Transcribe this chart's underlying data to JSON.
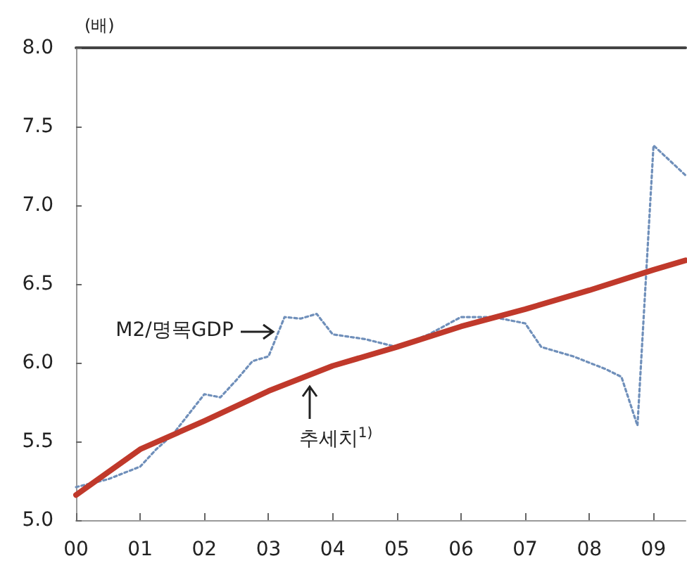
{
  "chart_data": {
    "type": "line",
    "ylabel": "(배)",
    "xlim": [
      2000,
      2009.5
    ],
    "xticks": [
      {
        "value": 2000,
        "label": "00"
      },
      {
        "value": 2001,
        "label": "01"
      },
      {
        "value": 2002,
        "label": "02"
      },
      {
        "value": 2003,
        "label": "03"
      },
      {
        "value": 2004,
        "label": "04"
      },
      {
        "value": 2005,
        "label": "05"
      },
      {
        "value": 2006,
        "label": "06"
      },
      {
        "value": 2007,
        "label": "07"
      },
      {
        "value": 2008,
        "label": "08"
      },
      {
        "value": 2009,
        "label": "09"
      }
    ],
    "ylim": [
      5,
      8
    ],
    "yticks": [
      {
        "value": 5,
        "label": "5.0"
      },
      {
        "value": 5.5,
        "label": "5.5"
      },
      {
        "value": 6,
        "label": "6.0"
      },
      {
        "value": 6.5,
        "label": "6.5"
      },
      {
        "value": 7,
        "label": "7.0"
      },
      {
        "value": 7.5,
        "label": "7.5"
      },
      {
        "value": 8,
        "label": "8.0"
      }
    ],
    "grid": false,
    "legend": false,
    "marker": "none",
    "series": [
      {
        "name": "M2/명목GDP",
        "color": "#6f8fba",
        "line_style": "dotted",
        "x": [
          2000,
          2000.5,
          2001,
          2001.25,
          2001.5,
          2002,
          2002.25,
          2002.5,
          2002.75,
          2003,
          2003.25,
          2003.5,
          2003.75,
          2004,
          2004.5,
          2005,
          2005.25,
          2005.5,
          2006,
          2006.5,
          2006.75,
          2007,
          2007.25,
          2007.75,
          2008.25,
          2008.5,
          2008.75,
          2009,
          2009.5
        ],
        "values": [
          5.21,
          5.26,
          5.34,
          5.45,
          5.54,
          5.8,
          5.78,
          5.89,
          6.01,
          6.04,
          6.29,
          6.28,
          6.31,
          6.18,
          6.15,
          6.1,
          6.14,
          6.18,
          6.29,
          6.29,
          6.27,
          6.25,
          6.1,
          6.04,
          5.96,
          5.91,
          5.6,
          7.38,
          7.19
        ]
      },
      {
        "name": "추세치$^{1)}$",
        "color": "#c0392b",
        "line_style": "solid",
        "x": [
          2000,
          2001,
          2002,
          2003,
          2004,
          2005,
          2006,
          2007,
          2008,
          2009,
          2009.5
        ],
        "values": [
          5.16,
          5.45,
          5.63,
          5.82,
          5.98,
          6.1,
          6.23,
          6.34,
          6.46,
          6.59,
          6.65
        ]
      }
    ]
  }
}
